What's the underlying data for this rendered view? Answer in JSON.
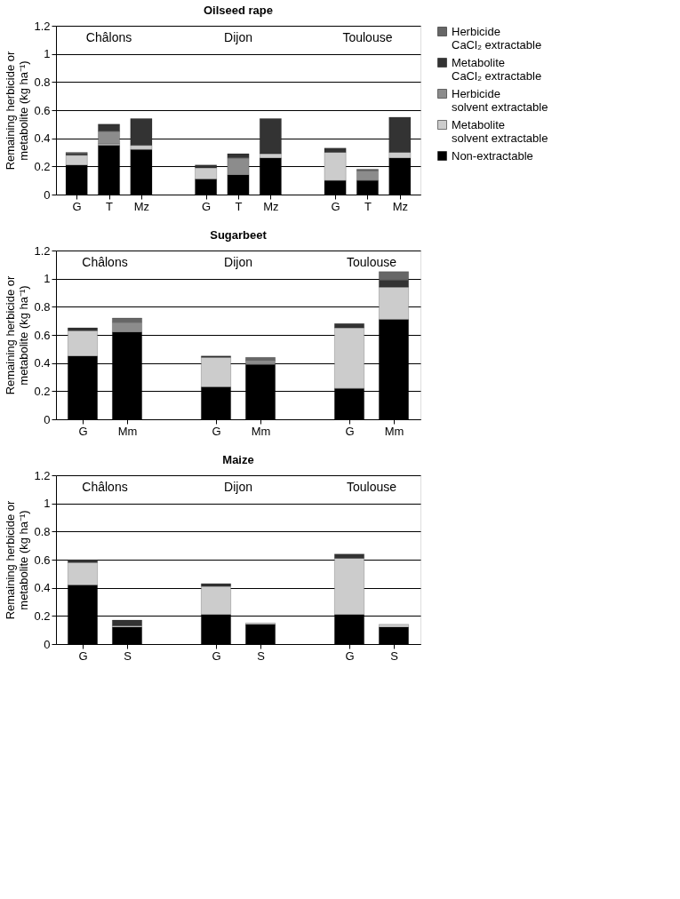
{
  "chart_data": [
    {
      "type": "bar",
      "stacked": true,
      "title": "Oilseed rape",
      "ylabel": "Remaining herbicide or\nmetabolite (kg ha⁻¹)",
      "categories": [
        "G",
        "T",
        "Mz",
        null,
        "G",
        "T",
        "Mz",
        null,
        "G",
        "T",
        "Mz"
      ],
      "ylim": [
        0,
        1.2
      ],
      "yticks": [
        0,
        0.2,
        0.4,
        0.6,
        0.8,
        1,
        1.2
      ],
      "grid": "y",
      "legend": "right",
      "annotations": [
        "Châlons",
        "Dijon",
        "Toulouse"
      ],
      "series": [
        {
          "name": "Non-extractable",
          "color": "#000000",
          "values": [
            0.21,
            0.35,
            0.32,
            null,
            0.11,
            0.14,
            0.26,
            null,
            0.1,
            0.1,
            0.26
          ]
        },
        {
          "name": "Metabolite\nsolvent extractable",
          "color": "#cccccc",
          "values": [
            0.07,
            0.01,
            0.03,
            null,
            0.08,
            null,
            0.03,
            null,
            0.2,
            null,
            0.04
          ]
        },
        {
          "name": "Herbicide\nsolvent extractable",
          "color": "#8c8c8c",
          "values": [
            null,
            0.09,
            null,
            null,
            null,
            0.12,
            null,
            null,
            null,
            0.07,
            null
          ]
        },
        {
          "name": "Metabolite\nCaCl₂ extractable",
          "color": "#333333",
          "values": [
            0.01,
            0.05,
            0.19,
            null,
            0.02,
            0.03,
            0.25,
            null,
            0.03,
            null,
            0.25
          ]
        },
        {
          "name": "Herbicide\nCaCl₂ extractable",
          "color": "#666666",
          "values": [
            0.01,
            null,
            null,
            null,
            null,
            null,
            null,
            null,
            null,
            0.01,
            null
          ]
        }
      ]
    },
    {
      "type": "bar",
      "stacked": true,
      "title": "Sugarbeet",
      "ylabel": "Remaining herbicide or\nmetabolite (kg ha⁻¹)",
      "categories": [
        "G",
        "Mm",
        null,
        "G",
        "Mm",
        null,
        "G",
        "Mm"
      ],
      "ylim": [
        0,
        1.2
      ],
      "yticks": [
        0,
        0.2,
        0.4,
        0.6,
        0.8,
        1,
        1.2
      ],
      "grid": "y",
      "annotations": [
        "Châlons",
        "Dijon",
        "Toulouse"
      ],
      "series": [
        {
          "color": "#000000",
          "values": [
            0.45,
            0.62,
            null,
            0.23,
            0.39,
            null,
            0.22,
            0.71
          ]
        },
        {
          "color": "#cccccc",
          "values": [
            0.18,
            null,
            null,
            0.21,
            null,
            null,
            0.43,
            0.23
          ]
        },
        {
          "color": "#8c8c8c",
          "values": [
            null,
            0.07,
            null,
            null,
            0.03,
            null,
            null,
            null
          ]
        },
        {
          "color": "#333333",
          "values": [
            0.02,
            null,
            null,
            0.01,
            null,
            null,
            0.03,
            0.05
          ]
        },
        {
          "color": "#666666",
          "values": [
            null,
            0.03,
            null,
            null,
            0.02,
            null,
            null,
            0.06
          ]
        }
      ]
    },
    {
      "type": "bar",
      "stacked": true,
      "title": "Maize",
      "ylabel": "Remaining herbicide or\nmetabolite (kg ha⁻¹)",
      "categories": [
        "G",
        "S",
        null,
        "G",
        "S",
        null,
        "G",
        "S"
      ],
      "ylim": [
        0,
        1.2
      ],
      "yticks": [
        0,
        0.2,
        0.4,
        0.6,
        0.8,
        1,
        1.2
      ],
      "grid": "y",
      "annotations": [
        "Châlons",
        "Dijon",
        "Toulouse"
      ],
      "series": [
        {
          "color": "#000000",
          "values": [
            0.42,
            0.12,
            null,
            0.21,
            0.14,
            null,
            0.21,
            0.12
          ]
        },
        {
          "color": "#cccccc",
          "values": [
            0.16,
            0.01,
            null,
            0.2,
            0.01,
            null,
            0.4,
            0.02
          ]
        },
        {
          "color": "#333333",
          "values": [
            0.02,
            0.04,
            null,
            0.02,
            null,
            null,
            0.03,
            null
          ]
        }
      ]
    }
  ]
}
